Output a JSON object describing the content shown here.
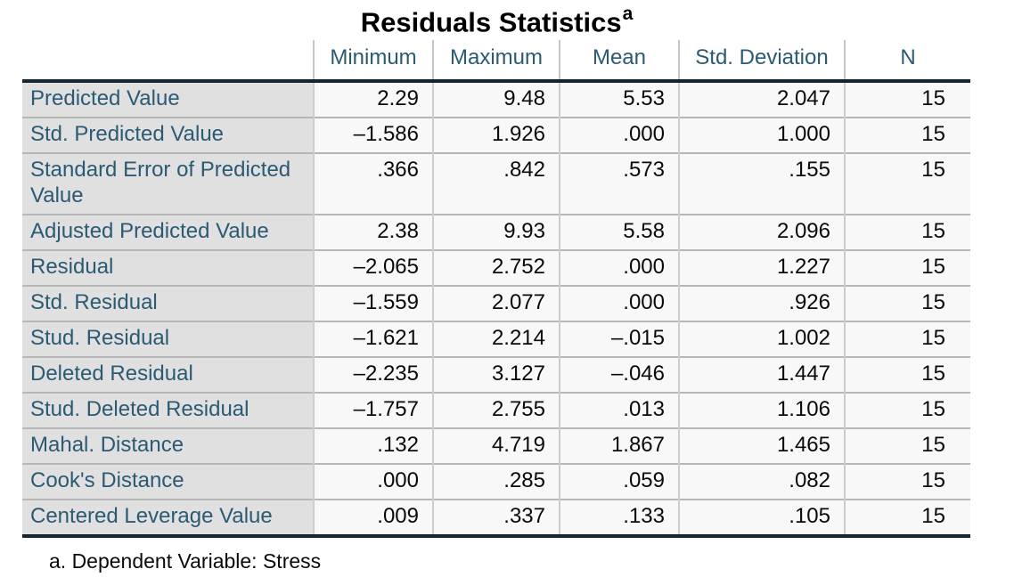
{
  "title": {
    "text": "Residuals Statistics",
    "marker": "a"
  },
  "table": {
    "columns": [
      "Minimum",
      "Maximum",
      "Mean",
      "Std. Deviation",
      "N"
    ],
    "rows": [
      {
        "label": "Predicted Value",
        "values": [
          "2.29",
          "9.48",
          "5.53",
          "2.047",
          "15"
        ]
      },
      {
        "label": "Std. Predicted Value",
        "values": [
          "–1.586",
          "1.926",
          ".000",
          "1.000",
          "15"
        ]
      },
      {
        "label": "Standard Error of Predicted Value",
        "values": [
          ".366",
          ".842",
          ".573",
          ".155",
          "15"
        ]
      },
      {
        "label": "Adjusted Predicted Value",
        "values": [
          "2.38",
          "9.93",
          "5.58",
          "2.096",
          "15"
        ]
      },
      {
        "label": "Residual",
        "values": [
          "–2.065",
          "2.752",
          ".000",
          "1.227",
          "15"
        ]
      },
      {
        "label": "Std. Residual",
        "values": [
          "–1.559",
          "2.077",
          ".000",
          ".926",
          "15"
        ]
      },
      {
        "label": "Stud. Residual",
        "values": [
          "–1.621",
          "2.214",
          "–.015",
          "1.002",
          "15"
        ]
      },
      {
        "label": "Deleted Residual",
        "values": [
          "–2.235",
          "3.127",
          "–.046",
          "1.447",
          "15"
        ]
      },
      {
        "label": "Stud. Deleted Residual",
        "values": [
          "–1.757",
          "2.755",
          ".013",
          "1.106",
          "15"
        ]
      },
      {
        "label": "Mahal. Distance",
        "values": [
          ".132",
          "4.719",
          "1.867",
          "1.465",
          "15"
        ]
      },
      {
        "label": "Cook's Distance",
        "values": [
          ".000",
          ".285",
          ".059",
          ".082",
          "15"
        ]
      },
      {
        "label": "Centered Leverage Value",
        "values": [
          ".009",
          ".337",
          ".133",
          ".105",
          "15"
        ]
      }
    ]
  },
  "footnote": "a. Dependent Variable: Stress",
  "colors": {
    "header_text": "#2b5a73",
    "label_cell_background": "#e0e0e0",
    "data_cell_background": "#f8f8f9",
    "thick_rule": "#15242e",
    "row_separator": "#b6b6b6",
    "column_divider": "#cdcdcd",
    "body_text": "#0a0a0a"
  },
  "chart_data": {
    "type": "table",
    "title": "Residuals Statistics",
    "title_footnote_marker": "a",
    "columns": [
      "Minimum",
      "Maximum",
      "Mean",
      "Std. Deviation",
      "N"
    ],
    "row_labels": [
      "Predicted Value",
      "Std. Predicted Value",
      "Standard Error of Predicted Value",
      "Adjusted Predicted Value",
      "Residual",
      "Std. Residual",
      "Stud. Residual",
      "Deleted Residual",
      "Stud. Deleted Residual",
      "Mahal. Distance",
      "Cook's Distance",
      "Centered Leverage Value"
    ],
    "values": [
      [
        2.29,
        9.48,
        5.53,
        2.047,
        15
      ],
      [
        -1.586,
        1.926,
        0.0,
        1.0,
        15
      ],
      [
        0.366,
        0.842,
        0.573,
        0.155,
        15
      ],
      [
        2.38,
        9.93,
        5.58,
        2.096,
        15
      ],
      [
        -2.065,
        2.752,
        0.0,
        1.227,
        15
      ],
      [
        -1.559,
        2.077,
        0.0,
        0.926,
        15
      ],
      [
        -1.621,
        2.214,
        -0.015,
        1.002,
        15
      ],
      [
        -2.235,
        3.127,
        -0.046,
        1.447,
        15
      ],
      [
        -1.757,
        2.755,
        0.013,
        1.106,
        15
      ],
      [
        0.132,
        4.719,
        1.867,
        1.465,
        15
      ],
      [
        0.0,
        0.285,
        0.059,
        0.082,
        15
      ],
      [
        0.009,
        0.337,
        0.133,
        0.105,
        15
      ]
    ],
    "footnote": "a. Dependent Variable: Stress"
  }
}
